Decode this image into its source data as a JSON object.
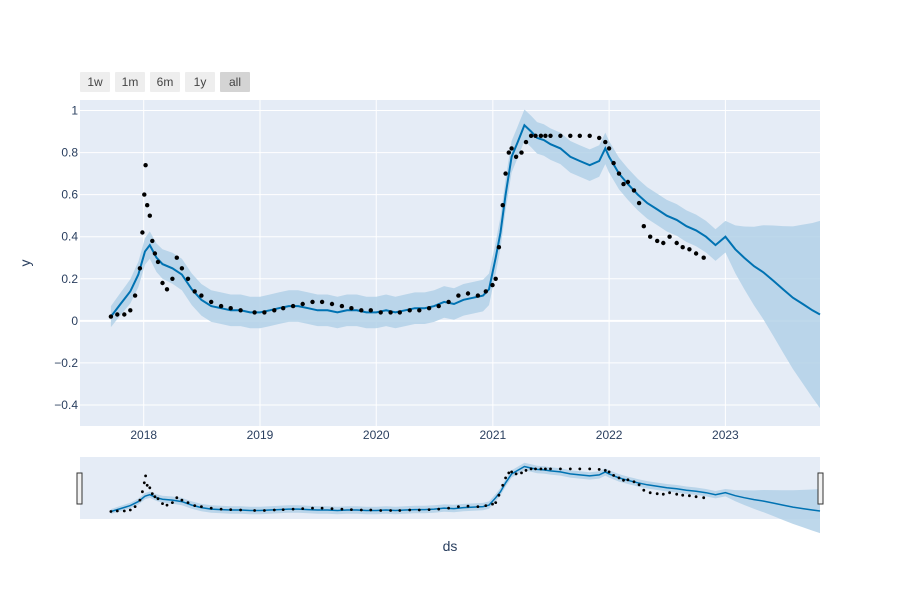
{
  "range_buttons": [
    {
      "label": "1w",
      "active": false
    },
    {
      "label": "1m",
      "active": false
    },
    {
      "label": "6m",
      "active": false
    },
    {
      "label": "1y",
      "active": false
    },
    {
      "label": "all",
      "active": true
    }
  ],
  "colors": {
    "plot_bg": "#e5ecf6",
    "grid": "#ffffff",
    "actual_points": "#000000",
    "forecast_line": "#0072b2",
    "uncertainty_band": "#b3d1e8",
    "text": "#2a3f5f"
  },
  "chart_data": {
    "type": "line",
    "title": "",
    "xlabel": "ds",
    "ylabel": "y",
    "x_range": [
      "2017-06-15",
      "2023-10-25"
    ],
    "ylim": [
      -0.5,
      1.05
    ],
    "x_ticks": [
      "2018",
      "2019",
      "2020",
      "2021",
      "2022",
      "2023"
    ],
    "y_ticks": [
      1,
      0.8,
      0.6,
      0.4,
      0.2,
      0,
      -0.2,
      -0.4
    ],
    "y_tick_labels": [
      "1",
      "0.8",
      "0.6",
      "0.4",
      "0.2",
      "0",
      "−0.2",
      "−0.4"
    ],
    "grid": true,
    "range_slider": true,
    "series": [
      {
        "type": "scatter",
        "role": "actual",
        "x": [
          "2017-09-20",
          "2017-10-10",
          "2017-11-01",
          "2017-11-20",
          "2017-12-05",
          "2017-12-20",
          "2017-12-28",
          "2018-01-03",
          "2018-01-07",
          "2018-01-12",
          "2018-01-20",
          "2018-01-28",
          "2018-02-05",
          "2018-02-15",
          "2018-03-01",
          "2018-03-15",
          "2018-04-01",
          "2018-04-15",
          "2018-05-01",
          "2018-05-20",
          "2018-06-10",
          "2018-07-01",
          "2018-08-01",
          "2018-09-01",
          "2018-10-01",
          "2018-11-01",
          "2018-12-15",
          "2019-01-15",
          "2019-02-15",
          "2019-03-15",
          "2019-04-15",
          "2019-05-15",
          "2019-06-15",
          "2019-07-15",
          "2019-08-15",
          "2019-09-15",
          "2019-10-15",
          "2019-11-15",
          "2019-12-15",
          "2020-01-15",
          "2020-02-15",
          "2020-03-15",
          "2020-04-15",
          "2020-05-15",
          "2020-06-15",
          "2020-07-15",
          "2020-08-15",
          "2020-09-15",
          "2020-10-15",
          "2020-11-15",
          "2020-12-10",
          "2020-12-31",
          "2021-01-10",
          "2021-01-20",
          "2021-02-01",
          "2021-02-10",
          "2021-02-20",
          "2021-03-01",
          "2021-03-15",
          "2021-04-01",
          "2021-04-15",
          "2021-05-01",
          "2021-05-15",
          "2021-06-01",
          "2021-06-15",
          "2021-07-01",
          "2021-08-01",
          "2021-09-01",
          "2021-10-01",
          "2021-11-01",
          "2021-12-01",
          "2021-12-20",
          "2022-01-01",
          "2022-01-15",
          "2022-02-01",
          "2022-02-15",
          "2022-03-01",
          "2022-03-20",
          "2022-04-05",
          "2022-04-20",
          "2022-05-10",
          "2022-06-01",
          "2022-06-20",
          "2022-07-10",
          "2022-08-01",
          "2022-08-20",
          "2022-09-10",
          "2022-10-01",
          "2022-10-25"
        ],
        "y": [
          0.02,
          0.03,
          0.03,
          0.05,
          0.12,
          0.25,
          0.42,
          0.6,
          0.74,
          0.55,
          0.5,
          0.38,
          0.32,
          0.28,
          0.18,
          0.15,
          0.2,
          0.3,
          0.25,
          0.2,
          0.14,
          0.12,
          0.09,
          0.07,
          0.06,
          0.05,
          0.04,
          0.04,
          0.05,
          0.06,
          0.07,
          0.08,
          0.09,
          0.09,
          0.08,
          0.07,
          0.06,
          0.05,
          0.05,
          0.04,
          0.04,
          0.04,
          0.05,
          0.05,
          0.06,
          0.07,
          0.09,
          0.12,
          0.13,
          0.12,
          0.14,
          0.17,
          0.2,
          0.35,
          0.55,
          0.7,
          0.8,
          0.82,
          0.78,
          0.8,
          0.85,
          0.88,
          0.88,
          0.88,
          0.88,
          0.88,
          0.88,
          0.88,
          0.88,
          0.88,
          0.87,
          0.85,
          0.82,
          0.75,
          0.7,
          0.65,
          0.66,
          0.62,
          0.56,
          0.45,
          0.4,
          0.38,
          0.37,
          0.4,
          0.37,
          0.35,
          0.34,
          0.32,
          0.3
        ]
      },
      {
        "type": "line",
        "role": "forecast",
        "x": [
          "2017-09-20",
          "2017-10-20",
          "2017-11-20",
          "2017-12-15",
          "2018-01-05",
          "2018-01-20",
          "2018-02-10",
          "2018-03-01",
          "2018-04-01",
          "2018-05-01",
          "2018-06-01",
          "2018-07-01",
          "2018-08-01",
          "2018-09-01",
          "2018-10-01",
          "2018-11-01",
          "2018-12-01",
          "2019-01-01",
          "2019-02-01",
          "2019-03-01",
          "2019-04-01",
          "2019-05-01",
          "2019-06-01",
          "2019-07-01",
          "2019-08-01",
          "2019-09-01",
          "2019-10-01",
          "2019-11-01",
          "2019-12-01",
          "2020-01-01",
          "2020-02-01",
          "2020-03-01",
          "2020-04-01",
          "2020-05-01",
          "2020-06-01",
          "2020-07-01",
          "2020-08-01",
          "2020-09-01",
          "2020-10-01",
          "2020-11-01",
          "2020-12-01",
          "2020-12-20",
          "2021-01-10",
          "2021-01-25",
          "2021-02-10",
          "2021-03-01",
          "2021-03-20",
          "2021-04-10",
          "2021-05-01",
          "2021-05-20",
          "2021-06-10",
          "2021-07-01",
          "2021-08-01",
          "2021-09-01",
          "2021-10-01",
          "2021-11-01",
          "2021-12-01",
          "2021-12-20",
          "2022-01-01",
          "2022-02-01",
          "2022-03-01",
          "2022-04-01",
          "2022-05-01",
          "2022-06-01",
          "2022-07-01",
          "2022-08-01",
          "2022-09-01",
          "2022-10-01",
          "2022-11-01",
          "2022-12-01",
          "2023-01-01",
          "2023-02-01",
          "2023-03-01",
          "2023-04-01",
          "2023-05-01",
          "2023-06-01",
          "2023-07-01",
          "2023-08-01",
          "2023-09-01",
          "2023-10-01",
          "2023-10-25"
        ],
        "y": [
          0.02,
          0.08,
          0.14,
          0.22,
          0.33,
          0.36,
          0.3,
          0.27,
          0.25,
          0.22,
          0.15,
          0.1,
          0.07,
          0.06,
          0.05,
          0.05,
          0.04,
          0.04,
          0.05,
          0.06,
          0.07,
          0.07,
          0.06,
          0.05,
          0.05,
          0.04,
          0.05,
          0.05,
          0.04,
          0.04,
          0.05,
          0.04,
          0.05,
          0.06,
          0.06,
          0.07,
          0.09,
          0.08,
          0.1,
          0.11,
          0.12,
          0.15,
          0.3,
          0.42,
          0.6,
          0.78,
          0.85,
          0.93,
          0.9,
          0.87,
          0.86,
          0.84,
          0.82,
          0.78,
          0.76,
          0.74,
          0.76,
          0.82,
          0.78,
          0.7,
          0.65,
          0.6,
          0.56,
          0.53,
          0.5,
          0.48,
          0.45,
          0.43,
          0.4,
          0.36,
          0.4,
          0.34,
          0.3,
          0.26,
          0.23,
          0.19,
          0.15,
          0.11,
          0.08,
          0.05,
          0.03
        ]
      }
    ]
  }
}
